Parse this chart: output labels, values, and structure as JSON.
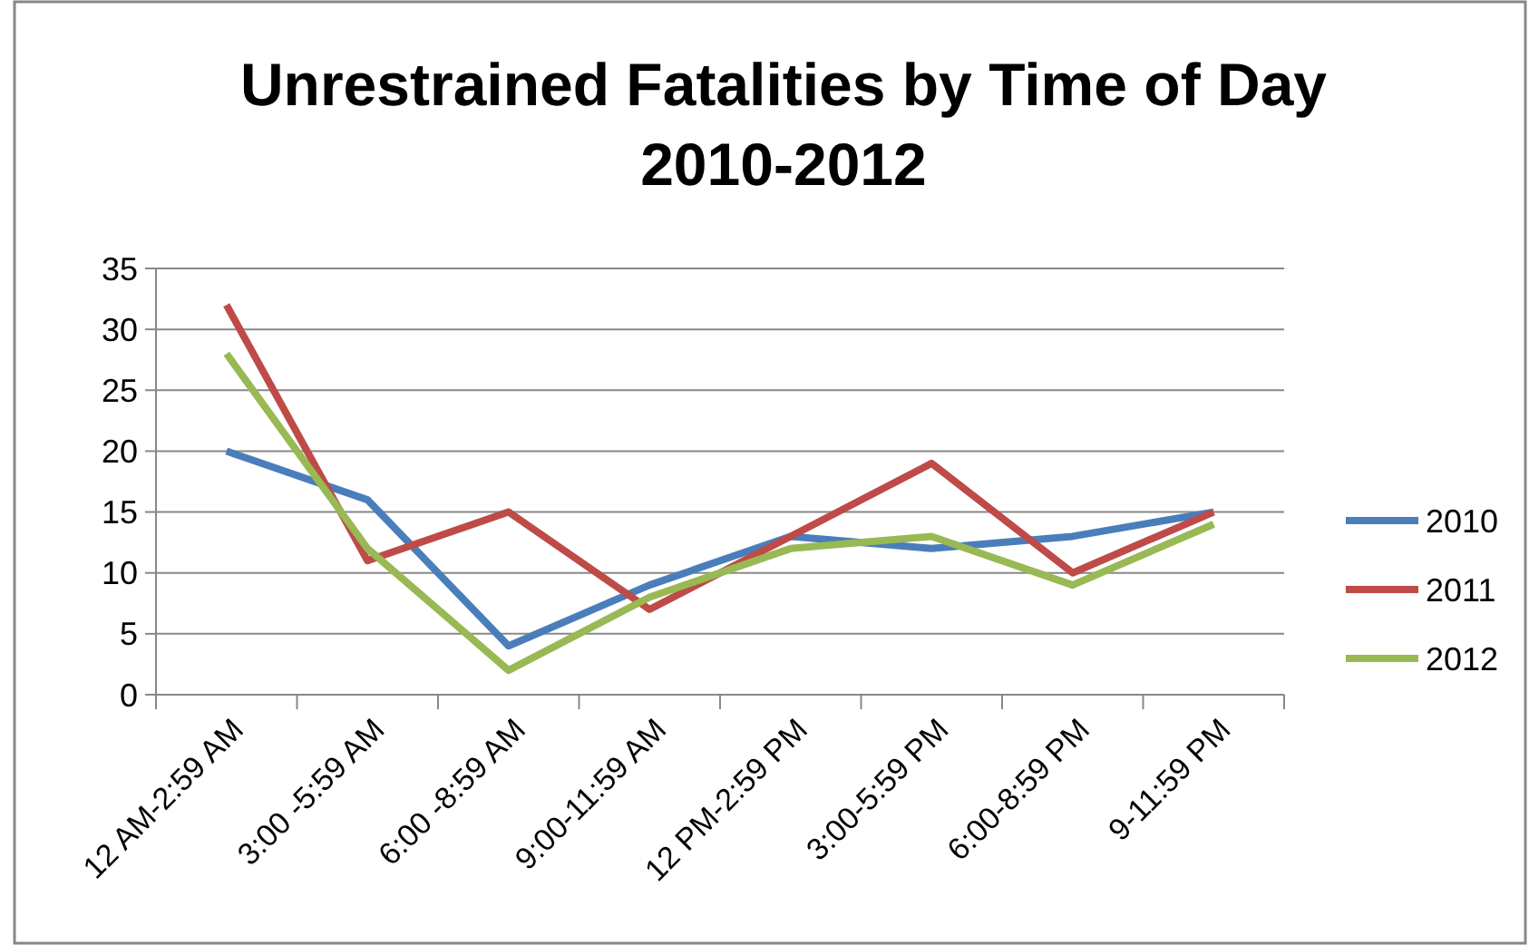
{
  "chart_data": {
    "type": "line",
    "title": "Unrestrained Fatalities by Time of Day\n2010-2012",
    "categories": [
      "12 AM-2:59 AM",
      "3:00 -5:59 AM",
      "6:00 -8:59 AM",
      "9:00-11:59 AM",
      "12 PM-2:59 PM",
      "3:00-5:59 PM",
      "6:00-8:59 PM",
      "9-11:59 PM"
    ],
    "series": [
      {
        "name": "2010",
        "color": "#4a7ebb",
        "values": [
          20,
          16,
          4,
          9,
          13,
          12,
          13,
          15
        ]
      },
      {
        "name": "2011",
        "color": "#be4b48",
        "values": [
          32,
          11,
          15,
          7,
          13,
          19,
          10,
          15
        ]
      },
      {
        "name": "2012",
        "color": "#98b954",
        "values": [
          28,
          12,
          2,
          8,
          12,
          13,
          9,
          14
        ]
      }
    ],
    "ylim": [
      0,
      35
    ],
    "yticks": [
      0,
      5,
      10,
      15,
      20,
      25,
      30,
      35
    ],
    "grid": "y",
    "legend": "right",
    "marker": "none",
    "line_style": "solid"
  }
}
